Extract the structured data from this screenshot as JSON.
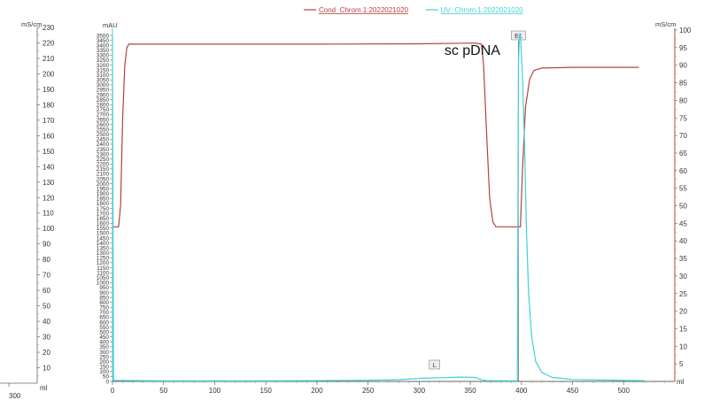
{
  "chart_data": {
    "type": "line",
    "legend_position": "top",
    "grid": false,
    "x_axis": {
      "unit": "ml",
      "range": [
        0,
        550
      ],
      "ticks": [
        0,
        50,
        100,
        150,
        200,
        250,
        300,
        350,
        400,
        450,
        500
      ]
    },
    "y_axis_left": {
      "unit": "mAU",
      "range": [
        0,
        3550
      ],
      "ticks": [
        0,
        50,
        100,
        150,
        200,
        250,
        300,
        350,
        400,
        450,
        500,
        550,
        600,
        650,
        700,
        750,
        800,
        850,
        900,
        950,
        1000,
        1050,
        1100,
        1150,
        1200,
        1250,
        1300,
        1350,
        1400,
        1450,
        1500,
        1550,
        1600,
        1650,
        1700,
        1750,
        1800,
        1850,
        1900,
        1950,
        2000,
        2050,
        2100,
        2150,
        2200,
        2250,
        2300,
        2350,
        2400,
        2450,
        2500,
        2550,
        2600,
        2650,
        2700,
        2750,
        2800,
        2850,
        2900,
        2950,
        3000,
        3050,
        3100,
        3150,
        3200,
        3250,
        3300,
        3350,
        3400,
        3450,
        3500
      ]
    },
    "y_axis_right": {
      "unit": "mS/cm",
      "range": [
        0,
        100
      ],
      "ticks": [
        5,
        10,
        15,
        20,
        25,
        30,
        35,
        40,
        45,
        50,
        55,
        60,
        65,
        70,
        75,
        80,
        85,
        90,
        95,
        100
      ]
    },
    "side_axis": {
      "unit": "mS/cm",
      "range": [
        0,
        230
      ],
      "ticks": [
        10,
        20,
        30,
        40,
        50,
        60,
        70,
        80,
        90,
        100,
        110,
        120,
        130,
        140,
        150,
        160,
        170,
        180,
        190,
        200,
        210,
        220,
        230
      ],
      "x_unit": "ml",
      "x_tick": "300"
    },
    "series": [
      {
        "name": "Cond_Chrom.1:2022021020",
        "color": "#b5413f",
        "axis": "right",
        "points": [
          [
            0,
            44
          ],
          [
            6,
            44
          ],
          [
            8,
            50
          ],
          [
            10,
            75
          ],
          [
            12,
            90
          ],
          [
            14,
            95
          ],
          [
            16,
            96
          ],
          [
            20,
            96
          ],
          [
            100,
            96
          ],
          [
            200,
            96
          ],
          [
            300,
            96.1
          ],
          [
            355,
            96.3
          ],
          [
            361,
            96
          ],
          [
            363,
            90
          ],
          [
            366,
            70
          ],
          [
            369,
            52
          ],
          [
            372,
            45.5
          ],
          [
            375,
            44
          ],
          [
            395,
            44
          ],
          [
            399,
            44
          ],
          [
            401,
            60
          ],
          [
            404,
            78
          ],
          [
            408,
            86
          ],
          [
            412,
            88.5
          ],
          [
            420,
            89.2
          ],
          [
            450,
            89.4
          ],
          [
            500,
            89.4
          ],
          [
            515,
            89.4
          ]
        ]
      },
      {
        "name": "UV_Chrom.1:2022021020",
        "color": "#40d0d6",
        "axis": "left",
        "points": [
          [
            0,
            3500
          ],
          [
            1,
            10
          ],
          [
            50,
            5
          ],
          [
            100,
            5
          ],
          [
            150,
            5
          ],
          [
            200,
            8
          ],
          [
            250,
            12
          ],
          [
            280,
            18
          ],
          [
            300,
            30
          ],
          [
            320,
            38
          ],
          [
            340,
            44
          ],
          [
            355,
            40
          ],
          [
            360,
            20
          ],
          [
            365,
            8
          ],
          [
            390,
            5
          ],
          [
            396,
            5
          ],
          [
            397,
            3200
          ],
          [
            398,
            3500
          ],
          [
            399,
            3500
          ],
          [
            401,
            3100
          ],
          [
            403,
            2400
          ],
          [
            405,
            1500
          ],
          [
            407,
            900
          ],
          [
            410,
            450
          ],
          [
            414,
            200
          ],
          [
            420,
            90
          ],
          [
            430,
            40
          ],
          [
            450,
            20
          ],
          [
            500,
            10
          ],
          [
            520,
            8
          ]
        ]
      }
    ],
    "annotations": [
      {
        "text": "sc pDNA",
        "x": 352,
        "y_right": 93
      },
      {
        "text": "E1",
        "x": 397,
        "kind": "marker"
      },
      {
        "text": "L",
        "x": 315,
        "kind": "marker"
      }
    ]
  }
}
